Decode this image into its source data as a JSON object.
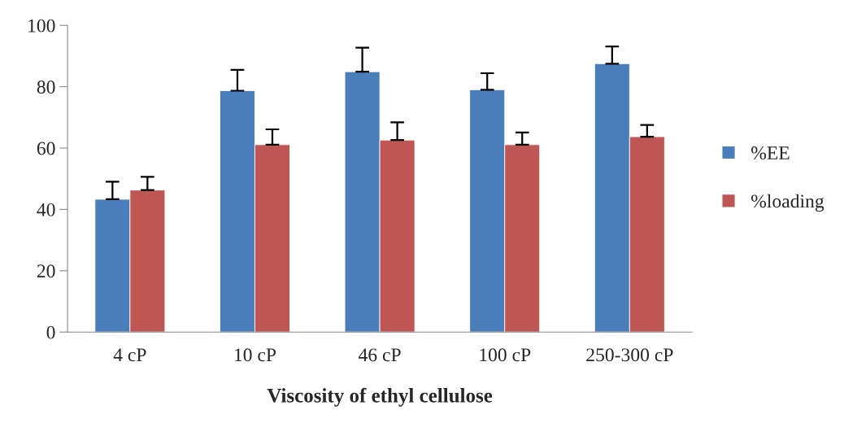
{
  "chart_data": {
    "type": "bar",
    "xlabel": "Viscosity of ethyl cellulose",
    "categories": [
      "4 cP",
      "10 cP",
      "46 cP",
      "100 cP",
      "250-300 cP"
    ],
    "series": [
      {
        "name": "%EE",
        "color": "#4a7ebb",
        "values": [
          43.3,
          78.7,
          84.9,
          79.0,
          87.5
        ],
        "errors": [
          5.7,
          6.8,
          7.8,
          5.4,
          5.6
        ]
      },
      {
        "name": "%loading",
        "color": "#be5654",
        "values": [
          46.3,
          61.1,
          62.6,
          61.1,
          63.7
        ],
        "errors": [
          4.3,
          5.0,
          5.8,
          4.0,
          3.8
        ]
      }
    ],
    "ylim": [
      0,
      100
    ],
    "yticks": [
      0,
      20,
      40,
      60,
      80,
      100
    ],
    "grid": false,
    "legend": "right"
  }
}
